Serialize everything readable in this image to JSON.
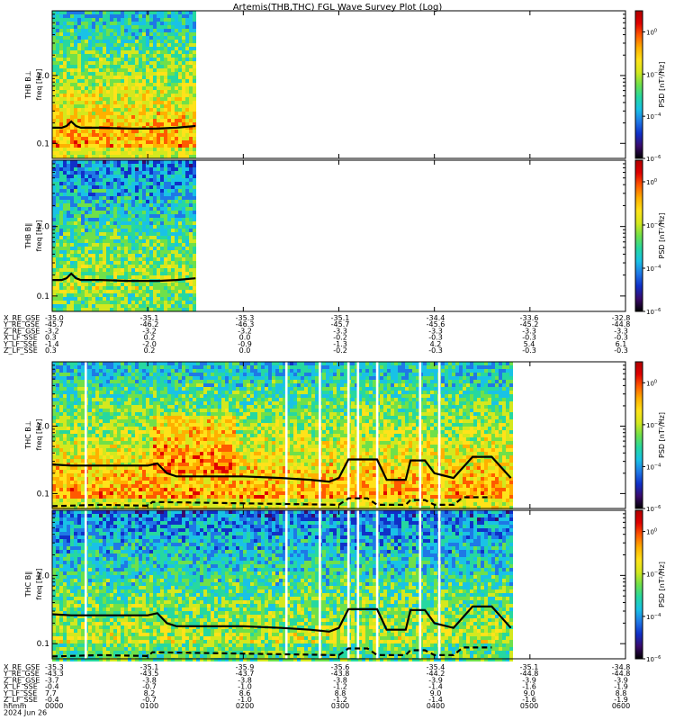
{
  "title": "Artemis(THB,THC) FGL Wave Survey Plot (Log)",
  "colormap": [
    "#000000",
    "#3a0a6a",
    "#1030c8",
    "#1f78e6",
    "#19c2e6",
    "#26d8a0",
    "#6fe04a",
    "#d4e81e",
    "#ffe21a",
    "#ffb000",
    "#ff5a00",
    "#e00000",
    "#b00000"
  ],
  "colorbar": {
    "label": "PSD [nT²/Hz]",
    "range_exp": [
      -6,
      1
    ],
    "ticks": [
      {
        "base": "10",
        "exp": "0",
        "value": 0
      },
      {
        "base": "10",
        "exp": "−2",
        "value": -2
      },
      {
        "base": "10",
        "exp": "−4",
        "value": -4
      },
      {
        "base": "10",
        "exp": "−6",
        "value": -6
      }
    ]
  },
  "freq_axis": {
    "ylabel_unit": "freq [Hz]",
    "ticks": [
      {
        "label": "1.0",
        "value": 1.0
      },
      {
        "label": "0.1",
        "value": 0.1
      }
    ],
    "range": [
      0.06,
      9.0
    ]
  },
  "chart_data": [
    {
      "type": "heatmap",
      "probe": "THB",
      "component": "THB B⊥",
      "xrange_hours": [
        0,
        1.5
      ],
      "data_end_hours": 1.5,
      "gaps_hours": [],
      "fce_line": {
        "type": "line",
        "x_hours": [
          0,
          0.1,
          0.15,
          0.2,
          0.25,
          0.3,
          0.5,
          0.8,
          1.1,
          1.3,
          1.5
        ],
        "y_hz": [
          0.17,
          0.17,
          0.18,
          0.21,
          0.18,
          0.17,
          0.17,
          0.165,
          0.165,
          0.17,
          0.18
        ]
      }
    },
    {
      "type": "heatmap",
      "probe": "THB",
      "component": "THB B∥",
      "xrange_hours": [
        0,
        1.5
      ],
      "data_end_hours": 1.5,
      "gaps_hours": [],
      "fce_line": {
        "type": "line",
        "x_hours": [
          0,
          0.1,
          0.15,
          0.2,
          0.25,
          0.3,
          0.5,
          0.8,
          1.1,
          1.3,
          1.5
        ],
        "y_hz": [
          0.17,
          0.17,
          0.18,
          0.21,
          0.18,
          0.17,
          0.17,
          0.165,
          0.165,
          0.17,
          0.18
        ]
      }
    },
    {
      "type": "heatmap",
      "probe": "THC",
      "component": "THC B⊥",
      "xrange_hours": [
        0,
        4.8
      ],
      "data_end_hours": 4.8,
      "gaps_hours": [
        0.35,
        2.45,
        2.8,
        3.1,
        3.2,
        3.4,
        3.85,
        4.05
      ],
      "fce_line": {
        "type": "line",
        "x_hours": [
          0,
          0.2,
          0.6,
          1.0,
          1.1,
          1.2,
          1.3,
          1.5,
          2.0,
          2.4,
          2.7,
          2.9,
          3.0,
          3.1,
          3.3,
          3.4,
          3.5,
          3.7,
          3.75,
          3.9,
          4.0,
          4.2,
          4.4,
          4.6,
          4.8
        ],
        "y_hz": [
          0.27,
          0.26,
          0.26,
          0.26,
          0.28,
          0.2,
          0.18,
          0.18,
          0.18,
          0.17,
          0.16,
          0.15,
          0.17,
          0.32,
          0.32,
          0.32,
          0.16,
          0.16,
          0.31,
          0.31,
          0.2,
          0.17,
          0.35,
          0.35,
          0.17
        ]
      },
      "fce_dashed": {
        "type": "line",
        "x_hours": [
          0,
          0.5,
          1.0,
          1.05,
          3.0,
          3.1,
          3.3,
          3.4,
          3.7,
          3.75,
          3.9,
          4.0,
          4.2,
          4.3,
          4.6
        ],
        "y_hz": [
          0.065,
          0.068,
          0.066,
          0.075,
          0.068,
          0.085,
          0.085,
          0.068,
          0.068,
          0.08,
          0.08,
          0.068,
          0.068,
          0.088,
          0.088
        ]
      }
    },
    {
      "type": "heatmap",
      "probe": "THC",
      "component": "THC B∥",
      "xrange_hours": [
        0,
        4.8
      ],
      "data_end_hours": 4.8,
      "gaps_hours": [
        0.35,
        2.45,
        2.8,
        3.1,
        3.2,
        3.4,
        3.85,
        4.05
      ],
      "fce_line": {
        "type": "line",
        "x_hours": [
          0,
          0.2,
          0.6,
          1.0,
          1.1,
          1.2,
          1.3,
          1.5,
          2.0,
          2.4,
          2.7,
          2.9,
          3.0,
          3.1,
          3.3,
          3.4,
          3.5,
          3.7,
          3.75,
          3.9,
          4.0,
          4.2,
          4.4,
          4.6,
          4.8
        ],
        "y_hz": [
          0.27,
          0.26,
          0.26,
          0.26,
          0.28,
          0.2,
          0.18,
          0.18,
          0.18,
          0.17,
          0.16,
          0.15,
          0.17,
          0.32,
          0.32,
          0.32,
          0.16,
          0.16,
          0.31,
          0.31,
          0.2,
          0.17,
          0.35,
          0.35,
          0.17
        ]
      },
      "fce_dashed": {
        "type": "line",
        "x_hours": [
          0,
          0.5,
          1.0,
          1.05,
          3.0,
          3.1,
          3.3,
          3.4,
          3.7,
          3.75,
          3.9,
          4.0,
          4.2,
          4.3,
          4.6
        ],
        "y_hz": [
          0.065,
          0.068,
          0.066,
          0.075,
          0.068,
          0.085,
          0.085,
          0.068,
          0.068,
          0.08,
          0.08,
          0.068,
          0.068,
          0.088,
          0.088
        ]
      }
    }
  ],
  "orbit_tables": [
    {
      "rows": [
        {
          "label": "X_RE_GSE",
          "values": [
            "-35.0",
            "-35.1",
            "-35.3",
            "-35.1",
            "-34.4",
            "-33.6",
            "-32.8"
          ]
        },
        {
          "label": "Y_RE_GSE",
          "values": [
            "-45.7",
            "-46.2",
            "-46.3",
            "-45.7",
            "-45.6",
            "-45.2",
            "-44.8"
          ]
        },
        {
          "label": "Z_RE_GSE",
          "values": [
            "-3.2",
            "-3.2",
            "-3.2",
            "-3.3",
            "-3.3",
            "-3.3",
            "-3.3"
          ]
        },
        {
          "label": "X_LF_SSE",
          "values": [
            "0.3",
            "0.2",
            "0.0",
            "-0.2",
            "-0.3",
            "-0.3",
            "-0.3"
          ]
        },
        {
          "label": "Y_LF_SSE",
          "values": [
            "-1.4",
            "-2.0",
            "-0.9",
            "-1.3",
            "4.2",
            "5.4",
            "6.1"
          ]
        },
        {
          "label": "Z_LF_SSE",
          "values": [
            "0.3",
            "0.2",
            "0.0",
            "-0.2",
            "-0.3",
            "-0.3",
            "-0.3"
          ]
        }
      ]
    },
    {
      "rows": [
        {
          "label": "X_RE_GSE",
          "values": [
            "-35.3",
            "-35.1",
            "-35.9",
            "-35.6",
            "-35.4",
            "-35.1",
            "-34.8"
          ]
        },
        {
          "label": "Y_RE_GSE",
          "values": [
            "-43.3",
            "-43.5",
            "-43.7",
            "-43.8",
            "-44.2",
            "-44.8",
            "-44.8"
          ]
        },
        {
          "label": "Z_RE_GSE",
          "values": [
            "-3.7",
            "-3.8",
            "-3.8",
            "-3.8",
            "-3.9",
            "-3.9",
            "-3.9"
          ]
        },
        {
          "label": "X_LF_SSE",
          "values": [
            "-0.4",
            "-0.7",
            "-1.0",
            "-1.2",
            "-1.4",
            "-1.6",
            "-1.9"
          ]
        },
        {
          "label": "Y_LF_SSE",
          "values": [
            "7.7",
            "8.2",
            "8.6",
            "8.8",
            "9.0",
            "9.0",
            "8.8"
          ]
        },
        {
          "label": "Z_LF_SSE",
          "values": [
            "-0.4",
            "-0.7",
            "-1.0",
            "-1.2",
            "-1.4",
            "-1.6",
            "-1.9"
          ]
        }
      ],
      "time_row": {
        "label": "hhmm",
        "values": [
          "0000",
          "0100",
          "0200",
          "0300",
          "0400",
          "0500",
          "0600"
        ]
      },
      "date": "2024 Jun 26"
    }
  ]
}
